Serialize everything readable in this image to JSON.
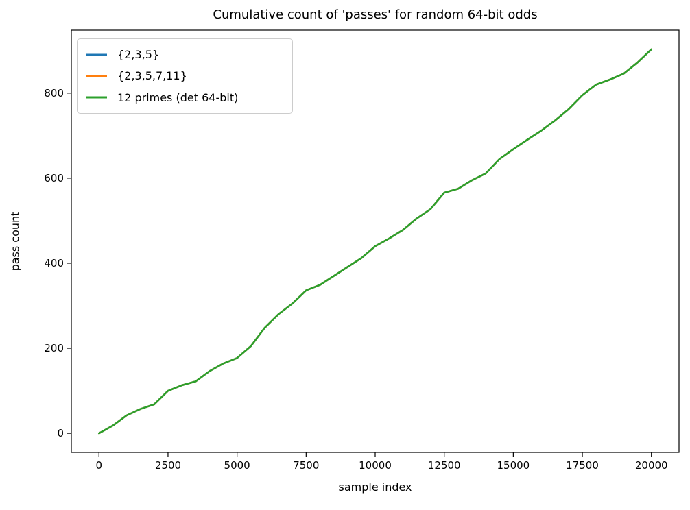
{
  "chart_data": {
    "type": "line",
    "title": "Cumulative count of 'passes' for random 64-bit odds",
    "xlabel": "sample index",
    "ylabel": "pass count",
    "legend_position": "upper left",
    "grid": false,
    "xlim": [
      -1000,
      21000
    ],
    "ylim": [
      -45,
      948
    ],
    "x_ticks": [
      0,
      2500,
      5000,
      7500,
      10000,
      12500,
      15000,
      17500,
      20000
    ],
    "y_ticks": [
      0,
      200,
      400,
      600,
      800
    ],
    "x": [
      0,
      500,
      1000,
      1500,
      2000,
      2500,
      3000,
      3500,
      4000,
      4500,
      5000,
      5500,
      6000,
      6500,
      7000,
      7500,
      8000,
      8500,
      9000,
      9500,
      10000,
      10500,
      11000,
      11500,
      12000,
      12500,
      13000,
      13500,
      14000,
      14500,
      15000,
      15500,
      16000,
      16500,
      17000,
      17500,
      18000,
      18500,
      19000,
      19500,
      20000
    ],
    "series": [
      {
        "name": "{2,3,5}",
        "color": "#1f77b4",
        "values": [
          0,
          18,
          42,
          57,
          68,
          100,
          113,
          122,
          146,
          164,
          177,
          205,
          248,
          280,
          305,
          336,
          349,
          370,
          391,
          412,
          440,
          458,
          478,
          505,
          527,
          566,
          575,
          595,
          611,
          645,
          668,
          690,
          711,
          735,
          762,
          795,
          820,
          832,
          846,
          872,
          903
        ]
      },
      {
        "name": "{2,3,5,7,11}",
        "color": "#ff7f0e",
        "values": [
          0,
          18,
          42,
          57,
          68,
          100,
          113,
          122,
          146,
          164,
          177,
          205,
          248,
          280,
          305,
          336,
          349,
          370,
          391,
          412,
          440,
          458,
          478,
          505,
          527,
          566,
          575,
          595,
          611,
          645,
          668,
          690,
          711,
          735,
          762,
          795,
          820,
          832,
          846,
          872,
          903
        ]
      },
      {
        "name": "12 primes (det 64-bit)",
        "color": "#2ca02c",
        "values": [
          0,
          18,
          42,
          57,
          68,
          100,
          113,
          122,
          146,
          164,
          177,
          205,
          248,
          280,
          305,
          336,
          349,
          370,
          391,
          412,
          440,
          458,
          478,
          505,
          527,
          566,
          575,
          595,
          611,
          645,
          668,
          690,
          711,
          735,
          762,
          795,
          820,
          832,
          846,
          872,
          903
        ]
      }
    ]
  },
  "colors": {
    "axes_edge": "#000000",
    "background": "#ffffff",
    "legend_border": "#cccccc"
  }
}
